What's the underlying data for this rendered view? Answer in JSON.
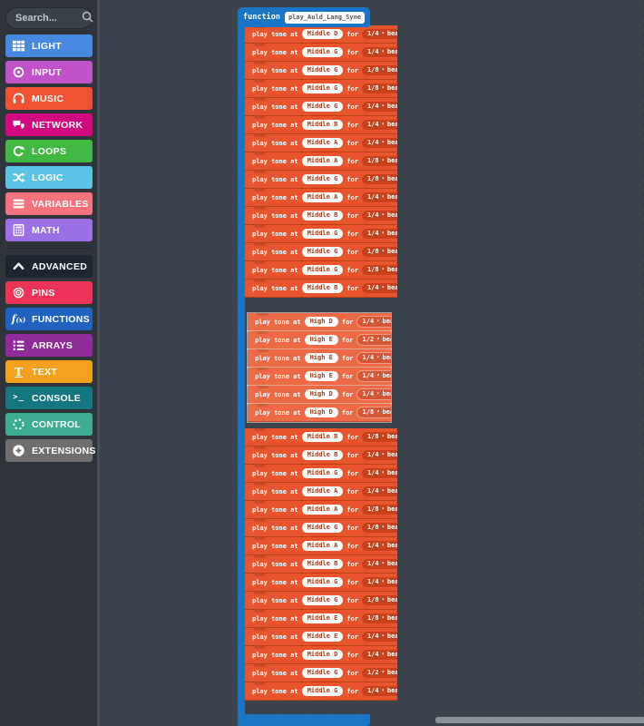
{
  "search": {
    "placeholder": "Search...",
    "icon": "search"
  },
  "toolbox": {
    "categories": [
      {
        "label": "LIGHT",
        "color": "#4889e0",
        "icon": "grid"
      },
      {
        "label": "INPUT",
        "color": "#c152c9",
        "icon": "target"
      },
      {
        "label": "MUSIC",
        "color": "#ef5232",
        "icon": "headphones"
      },
      {
        "label": "NETWORK",
        "color": "#d1097e",
        "icon": "chat"
      },
      {
        "label": "LOOPS",
        "color": "#41b841",
        "icon": "repeat"
      },
      {
        "label": "LOGIC",
        "color": "#5bc3e6",
        "icon": "shuffle"
      },
      {
        "label": "VARIABLES",
        "color": "#f4737f",
        "icon": "lines"
      },
      {
        "label": "MATH",
        "color": "#9d6fe4",
        "icon": "calculator"
      }
    ],
    "advanced_toggle": {
      "label": "ADVANCED",
      "color": "#1b2631",
      "icon": "chevron-up"
    },
    "advanced_categories": [
      {
        "label": "PINS",
        "color": "#ea3356",
        "icon": "rings"
      },
      {
        "label": "FUNCTIONS",
        "color": "#2063be",
        "icon": "fx"
      },
      {
        "label": "ARRAYS",
        "color": "#8f2a9b",
        "icon": "numbered-list"
      },
      {
        "label": "TEXT",
        "color": "#f2a01d",
        "icon": "text"
      },
      {
        "label": "CONSOLE",
        "color": "#157680",
        "icon": "terminal"
      },
      {
        "label": "CONTROL",
        "color": "#3eac92",
        "icon": "spinner"
      },
      {
        "label": "EXTENSIONS",
        "color": "#6f6e6e",
        "icon": "plus"
      }
    ]
  },
  "workspace": {
    "function_block": {
      "keyword": "function",
      "name": "play_Auld_Lang_Syne",
      "color": "#1a75c5"
    },
    "block_text": {
      "play": "play tone at",
      "for": "for",
      "beat": "beat",
      "arrow": "▾"
    },
    "colors": {
      "block": "#e8542d",
      "block_seam": "#b84018",
      "beat_capsule": "#c7411d",
      "note_text": "#a23c17",
      "floating_block": "#ec6a45",
      "floating_beat_capsule": "#d65738"
    },
    "main_stack_top": [
      {
        "note": "Middle D",
        "beat": "1/4"
      },
      {
        "note": "Middle G",
        "beat": "1/4"
      },
      {
        "note": "Middle G",
        "beat": "1/8"
      },
      {
        "note": "Middle G",
        "beat": "1/8"
      },
      {
        "note": "Middle G",
        "beat": "1/4"
      },
      {
        "note": "Middle B",
        "beat": "1/4"
      },
      {
        "note": "Middle A",
        "beat": "1/4"
      },
      {
        "note": "Middle A",
        "beat": "1/8"
      },
      {
        "note": "Middle G",
        "beat": "1/8"
      },
      {
        "note": "Middle A",
        "beat": "1/4"
      },
      {
        "note": "Middle B",
        "beat": "1/4"
      },
      {
        "note": "Middle G",
        "beat": "1/4"
      },
      {
        "note": "Middle G",
        "beat": "1/8"
      },
      {
        "note": "Middle G",
        "beat": "1/8"
      },
      {
        "note": "Middle B",
        "beat": "1/4"
      }
    ],
    "floating_stack": [
      {
        "note": "High D",
        "beat": "1/4"
      },
      {
        "note": "High E",
        "beat": "1/2"
      },
      {
        "note": "High E",
        "beat": "1/4"
      },
      {
        "note": "High E",
        "beat": "1/4"
      },
      {
        "note": "High D",
        "beat": "1/4"
      },
      {
        "note": "High D",
        "beat": "1/8"
      }
    ],
    "main_stack_bottom": [
      {
        "note": "Middle B",
        "beat": "1/8"
      },
      {
        "note": "Middle B",
        "beat": "1/4"
      },
      {
        "note": "Middle G",
        "beat": "1/4"
      },
      {
        "note": "Middle A",
        "beat": "1/4"
      },
      {
        "note": "Middle A",
        "beat": "1/8"
      },
      {
        "note": "Middle G",
        "beat": "1/8"
      },
      {
        "note": "Middle A",
        "beat": "1/4"
      },
      {
        "note": "Middle B",
        "beat": "1/4"
      },
      {
        "note": "Middle G",
        "beat": "1/4"
      },
      {
        "note": "Middle G",
        "beat": "1/8"
      },
      {
        "note": "Middle E",
        "beat": "1/8"
      },
      {
        "note": "Middle E",
        "beat": "1/4"
      },
      {
        "note": "Middle D",
        "beat": "1/4"
      },
      {
        "note": "Middle G",
        "beat": "1/2"
      },
      {
        "note": "Middle G",
        "beat": "1/4"
      }
    ]
  }
}
